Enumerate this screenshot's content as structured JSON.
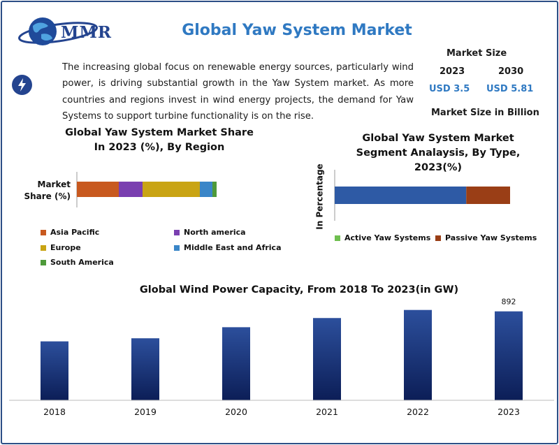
{
  "header": {
    "logo_text": "MMR",
    "title": "Global Yaw System Market"
  },
  "intro": {
    "icon": "lightning-bolt-icon",
    "text": "The increasing global focus on renewable energy sources, particularly wind power, is driving substantial growth in the Yaw System market. As more countries and regions invest in wind energy projects, the demand for Yaw Systems to support turbine functionality is on the rise."
  },
  "market_size": {
    "heading": "Market Size",
    "year_a": "2023",
    "year_b": "2030",
    "value_a": "USD 3.5",
    "value_b": "USD 5.81",
    "unit": "Market Size in Billion"
  },
  "colors": {
    "asia_pacific": "#c8591f",
    "north_america": "#7a3fb0",
    "europe": "#c9a414",
    "mea": "#3a86c8",
    "south_america": "#4e9a3a",
    "active_yaw": "#2e5aa5",
    "passive_yaw": "#9a3e16",
    "legend_active": "#6fbf50",
    "title_blue": "#2f79c2",
    "bar_top": "#2c4f9c",
    "bar_bottom": "#0c1e57"
  },
  "chart_data": [
    {
      "type": "bar",
      "orientation": "horizontal-stacked",
      "title": "Global Yaw System Market Share In 2023 (%), By Region",
      "ylabel": "Market Share (%)",
      "categories": [
        "Market Share (%)"
      ],
      "series": [
        {
          "name": "Asia Pacific",
          "values": [
            30
          ]
        },
        {
          "name": "North america",
          "values": [
            17
          ]
        },
        {
          "name": "Europe",
          "values": [
            41
          ]
        },
        {
          "name": "Middle East and Africa",
          "values": [
            9
          ]
        },
        {
          "name": "South America",
          "values": [
            3
          ]
        }
      ],
      "legend": "bottom"
    },
    {
      "type": "bar",
      "orientation": "horizontal-stacked",
      "title": "Global Yaw System Market Segment Analaysis, By Type, 2023(%)",
      "ylabel": "In Percentage",
      "categories": [
        "In Percentage"
      ],
      "series": [
        {
          "name": "Active Yaw Systems",
          "values": [
            75
          ]
        },
        {
          "name": "Passive Yaw Systems",
          "values": [
            25
          ]
        }
      ],
      "legend": "bottom"
    },
    {
      "type": "bar",
      "title": "Global Wind Power Capacity, From 2018 To 2023(in GW)",
      "categories": [
        "2018",
        "2019",
        "2020",
        "2021",
        "2022",
        "2023"
      ],
      "values": [
        591,
        622,
        733,
        825,
        906,
        892
      ],
      "data_labels": [
        "",
        "",
        "",
        "",
        "",
        "892"
      ],
      "ylim": [
        0,
        1100
      ],
      "grid": false
    }
  ]
}
